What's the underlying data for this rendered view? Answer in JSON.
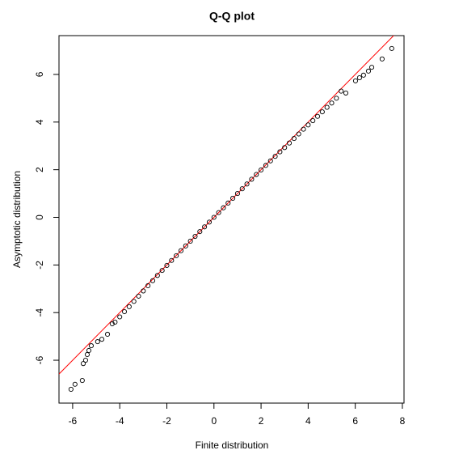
{
  "chart_data": {
    "type": "scatter",
    "title": "Q-Q plot",
    "x_label": "Finite distribution",
    "y_label": "Asymptotic distribution",
    "xlim": [
      -6.58,
      8.07
    ],
    "ylim": [
      -7.8,
      7.63
    ],
    "xticks": [
      -6,
      -4,
      -2,
      0,
      2,
      4,
      6,
      8
    ],
    "yticks": [
      -6,
      -4,
      -2,
      0,
      2,
      4,
      6
    ],
    "point_color": "#000000",
    "reference_line": {
      "intercept": 0,
      "slope": 1,
      "color": "#ff0000"
    },
    "x": [
      -6.07,
      -5.9,
      -5.59,
      -5.55,
      -5.45,
      -5.38,
      -5.31,
      -5.21,
      -4.94,
      -4.76,
      -4.52,
      -4.32,
      -4.2,
      -4.0,
      -3.8,
      -3.6,
      -3.4,
      -3.2,
      -3.0,
      -2.8,
      -2.6,
      -2.4,
      -2.2,
      -2.0,
      -1.8,
      -1.6,
      -1.4,
      -1.2,
      -1.0,
      -0.8,
      -0.6,
      -0.4,
      -0.2,
      0,
      0.2,
      0.4,
      0.6,
      0.8,
      1.0,
      1.2,
      1.4,
      1.6,
      1.8,
      2.0,
      2.2,
      2.4,
      2.6,
      2.8,
      3.0,
      3.2,
      3.4,
      3.6,
      3.8,
      4.0,
      4.2,
      4.4,
      4.6,
      4.8,
      5.0,
      5.2,
      5.4,
      5.6,
      6.01,
      6.18,
      6.35,
      6.56,
      6.7,
      7.14,
      7.55
    ],
    "y": [
      -7.22,
      -7.01,
      -6.85,
      -6.14,
      -6.0,
      -5.76,
      -5.59,
      -5.39,
      -5.22,
      -5.12,
      -4.91,
      -4.47,
      -4.4,
      -4.18,
      -3.96,
      -3.75,
      -3.53,
      -3.31,
      -3.09,
      -2.87,
      -2.66,
      -2.44,
      -2.23,
      -2.02,
      -1.81,
      -1.61,
      -1.4,
      -1.2,
      -1.0,
      -0.8,
      -0.6,
      -0.4,
      -0.2,
      0,
      0.2,
      0.4,
      0.6,
      0.8,
      1.0,
      1.2,
      1.4,
      1.6,
      1.8,
      1.99,
      2.18,
      2.37,
      2.56,
      2.75,
      2.93,
      3.12,
      3.31,
      3.5,
      3.7,
      3.88,
      4.06,
      4.24,
      4.43,
      4.62,
      4.8,
      5.0,
      5.3,
      5.22,
      5.73,
      5.86,
      5.97,
      6.14,
      6.3,
      6.65,
      7.09
    ]
  }
}
